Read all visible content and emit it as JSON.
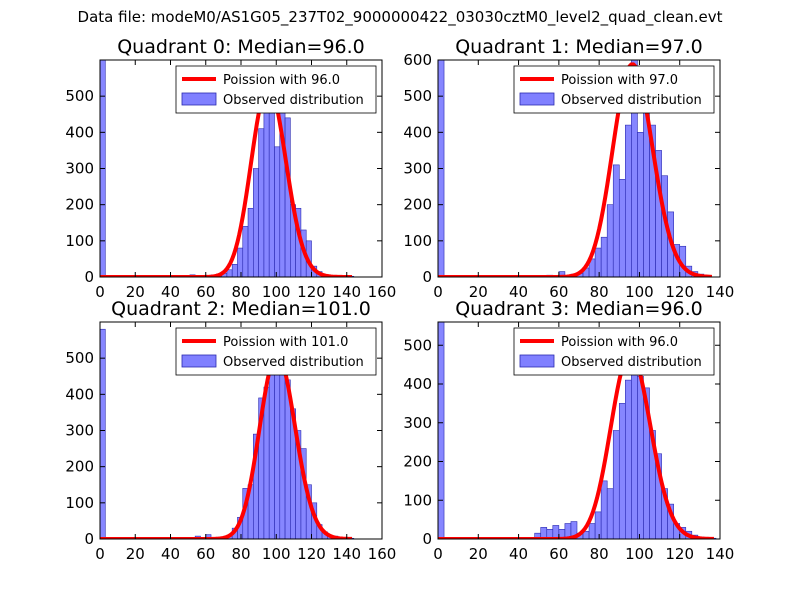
{
  "figure": {
    "suptitle": "Data file: modeM0/AS1G05_237T02_9000000422_03030cztM0_level2_quad_clean.evt"
  },
  "colors": {
    "fit": "#ff0000",
    "hist_fill": "#8080ff",
    "hist_edge": "#2a2ab0",
    "axis": "#000000"
  },
  "chart_data": [
    {
      "type": "bar",
      "title": "Quadrant 0: Median=96.0",
      "xlim": [
        0,
        160
      ],
      "ylim": [
        0,
        600
      ],
      "xticks": [
        0,
        20,
        40,
        60,
        80,
        100,
        120,
        140,
        160
      ],
      "yticks": [
        0,
        100,
        200,
        300,
        400,
        500
      ],
      "legend": [
        "Poission with 96.0",
        "Observed distribution"
      ],
      "bin_width": 3,
      "bins": [
        [
          0,
          600
        ],
        [
          51,
          6
        ],
        [
          57,
          4
        ],
        [
          63,
          6
        ],
        [
          66,
          8
        ],
        [
          69,
          10
        ],
        [
          72,
          20
        ],
        [
          75,
          35
        ],
        [
          78,
          80
        ],
        [
          81,
          140
        ],
        [
          84,
          190
        ],
        [
          87,
          300
        ],
        [
          90,
          410
        ],
        [
          93,
          520
        ],
        [
          96,
          540
        ],
        [
          99,
          360
        ],
        [
          102,
          520
        ],
        [
          105,
          440
        ],
        [
          108,
          200
        ],
        [
          111,
          190
        ],
        [
          114,
          130
        ],
        [
          117,
          100
        ],
        [
          120,
          30
        ],
        [
          123,
          15
        ],
        [
          126,
          6
        ],
        [
          129,
          3
        ],
        [
          132,
          2
        ],
        [
          138,
          1
        ],
        [
          141,
          2
        ]
      ],
      "fit": {
        "lambda": 96.0,
        "x_max": 143
      }
    },
    {
      "type": "bar",
      "title": "Quadrant 1: Median=97.0",
      "xlim": [
        0,
        140
      ],
      "ylim": [
        0,
        600
      ],
      "xticks": [
        0,
        20,
        40,
        60,
        80,
        100,
        120,
        140
      ],
      "yticks": [
        0,
        100,
        200,
        300,
        400,
        500,
        600
      ],
      "legend": [
        "Poission with 97.0",
        "Observed distribution"
      ],
      "bin_width": 3,
      "bins": [
        [
          0,
          600
        ],
        [
          54,
          5
        ],
        [
          60,
          15
        ],
        [
          66,
          8
        ],
        [
          69,
          10
        ],
        [
          72,
          25
        ],
        [
          75,
          50
        ],
        [
          78,
          80
        ],
        [
          81,
          110
        ],
        [
          84,
          200
        ],
        [
          87,
          310
        ],
        [
          90,
          270
        ],
        [
          93,
          420
        ],
        [
          96,
          600
        ],
        [
          99,
          400
        ],
        [
          102,
          560
        ],
        [
          105,
          420
        ],
        [
          108,
          350
        ],
        [
          111,
          280
        ],
        [
          114,
          180
        ],
        [
          117,
          90
        ],
        [
          120,
          85
        ],
        [
          123,
          30
        ],
        [
          126,
          15
        ],
        [
          129,
          8
        ],
        [
          132,
          3
        ]
      ],
      "fit": {
        "lambda": 97.0,
        "x_max": 136
      }
    },
    {
      "type": "bar",
      "title": "Quadrant 2: Median=101.0",
      "xlim": [
        0,
        160
      ],
      "ylim": [
        0,
        600
      ],
      "xticks": [
        0,
        20,
        40,
        60,
        80,
        100,
        120,
        140,
        160
      ],
      "yticks": [
        0,
        100,
        200,
        300,
        400,
        500
      ],
      "legend": [
        "Poission with 101.0",
        "Observed distribution"
      ],
      "bin_width": 3,
      "bins": [
        [
          0,
          580
        ],
        [
          54,
          8
        ],
        [
          60,
          12
        ],
        [
          66,
          5
        ],
        [
          72,
          10
        ],
        [
          75,
          30
        ],
        [
          78,
          60
        ],
        [
          81,
          140
        ],
        [
          84,
          150
        ],
        [
          87,
          290
        ],
        [
          90,
          390
        ],
        [
          93,
          420
        ],
        [
          96,
          520
        ],
        [
          99,
          500
        ],
        [
          102,
          520
        ],
        [
          105,
          440
        ],
        [
          108,
          360
        ],
        [
          111,
          300
        ],
        [
          114,
          250
        ],
        [
          117,
          150
        ],
        [
          120,
          100
        ],
        [
          123,
          40
        ],
        [
          126,
          20
        ],
        [
          129,
          10
        ],
        [
          132,
          8
        ],
        [
          135,
          3
        ],
        [
          141,
          2
        ]
      ],
      "fit": {
        "lambda": 101.0,
        "x_max": 143
      }
    },
    {
      "type": "bar",
      "title": "Quadrant 3: Median=96.0",
      "xlim": [
        0,
        140
      ],
      "ylim": [
        0,
        560
      ],
      "xticks": [
        0,
        20,
        40,
        60,
        80,
        100,
        120,
        140
      ],
      "yticks": [
        0,
        100,
        200,
        300,
        400,
        500
      ],
      "legend": [
        "Poission with 96.0",
        "Observed distribution"
      ],
      "bin_width": 3,
      "bins": [
        [
          0,
          560
        ],
        [
          48,
          15
        ],
        [
          51,
          30
        ],
        [
          54,
          25
        ],
        [
          57,
          35
        ],
        [
          60,
          25
        ],
        [
          63,
          40
        ],
        [
          66,
          45
        ],
        [
          69,
          15
        ],
        [
          72,
          20
        ],
        [
          75,
          40
        ],
        [
          78,
          70
        ],
        [
          81,
          150
        ],
        [
          84,
          130
        ],
        [
          87,
          280
        ],
        [
          90,
          350
        ],
        [
          93,
          410
        ],
        [
          96,
          490
        ],
        [
          99,
          420
        ],
        [
          102,
          390
        ],
        [
          105,
          280
        ],
        [
          108,
          220
        ],
        [
          111,
          130
        ],
        [
          114,
          90
        ],
        [
          117,
          40
        ],
        [
          120,
          30
        ],
        [
          123,
          20
        ],
        [
          126,
          10
        ],
        [
          129,
          5
        ],
        [
          132,
          3
        ],
        [
          135,
          2
        ]
      ],
      "fit": {
        "lambda": 96.0,
        "x_max": 137
      }
    }
  ]
}
